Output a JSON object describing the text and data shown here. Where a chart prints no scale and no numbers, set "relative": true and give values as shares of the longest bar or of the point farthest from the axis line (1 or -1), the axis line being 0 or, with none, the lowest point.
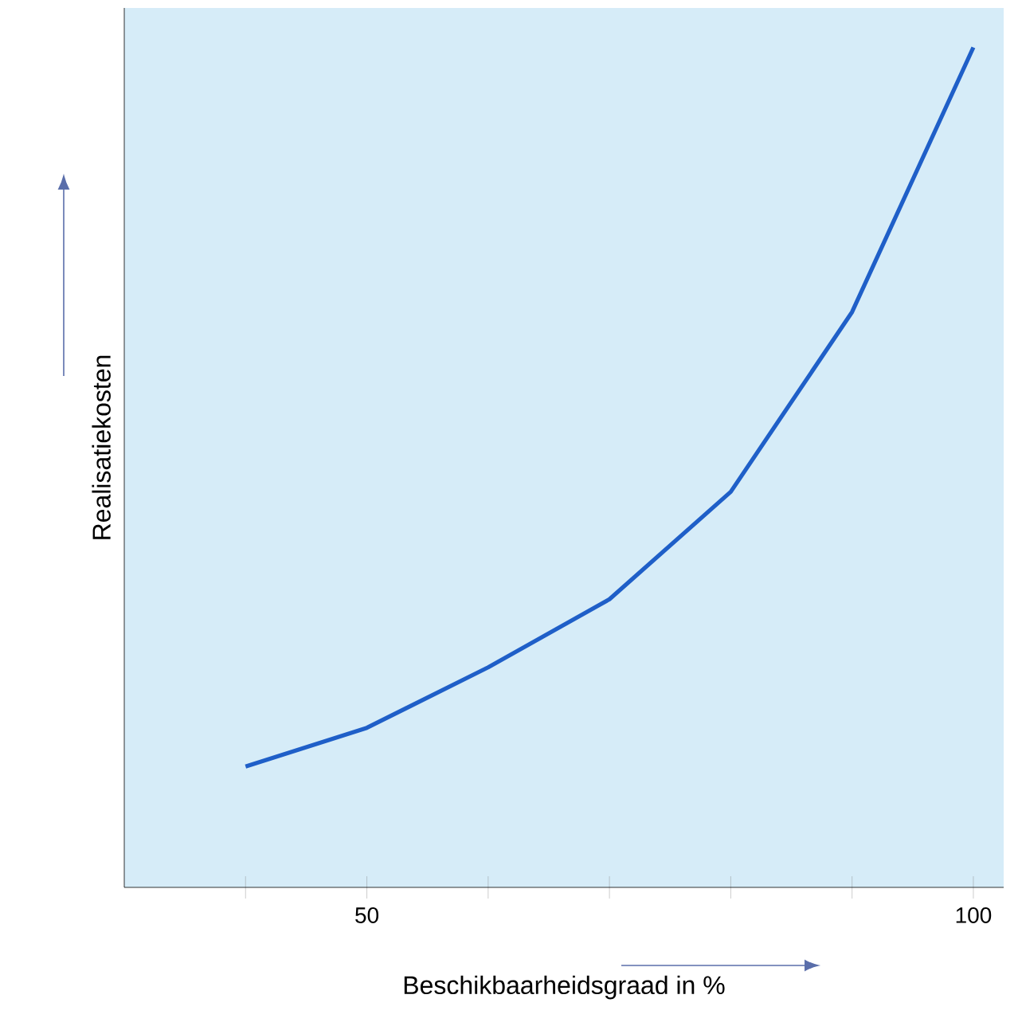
{
  "chart_data": {
    "type": "line",
    "xlabel": "Beschikbaarheidsgraad in %",
    "ylabel": "Realisatiekosten",
    "x": [
      40,
      50,
      60,
      70,
      80,
      90,
      100
    ],
    "values": [
      0.144,
      0.19,
      0.262,
      0.343,
      0.471,
      0.685,
      1
    ],
    "color": "#1f5fc8",
    "relative": true,
    "marker": "none",
    "line_style": "solid",
    "xlim": [
      30,
      102.5
    ],
    "xticks": [
      {
        "value": 40,
        "label": null
      },
      50,
      {
        "value": 60,
        "label": null
      },
      {
        "value": 70,
        "label": null
      },
      {
        "value": 80,
        "label": null
      },
      {
        "value": 90,
        "label": null
      },
      100
    ]
  }
}
